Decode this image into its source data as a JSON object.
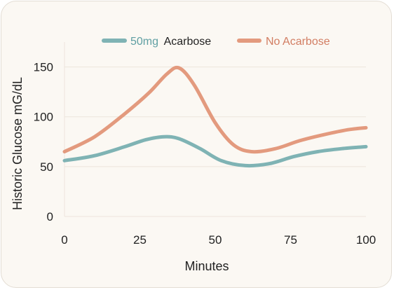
{
  "chart_data": {
    "type": "line",
    "title": "",
    "xlabel": "Minutes",
    "ylabel": "Historic Glucose mG/dL",
    "xlim": [
      0,
      100
    ],
    "ylim": [
      0,
      175
    ],
    "x_ticks": [
      0,
      25,
      50,
      75,
      100
    ],
    "y_ticks": [
      0,
      50,
      100,
      150
    ],
    "grid": true,
    "legend_position": "top-center",
    "series": [
      {
        "name_prefix": "50mg",
        "name_suffix": "Acarbose",
        "color": "#7fb3b4",
        "prefix_color": "#5f9fa3",
        "suffix_color": "#222222",
        "x": [
          0,
          10,
          20,
          27,
          33,
          38,
          45,
          52,
          60,
          68,
          76,
          84,
          92,
          100
        ],
        "y": [
          56,
          61,
          70,
          77,
          80,
          78,
          68,
          56,
          51,
          53,
          60,
          65,
          68,
          70
        ]
      },
      {
        "name": "No Acarbose",
        "color": "#e39a7e",
        "text_color": "#d27d62",
        "x": [
          0,
          10,
          20,
          28,
          34,
          38,
          43,
          50,
          56,
          62,
          70,
          78,
          86,
          94,
          100
        ],
        "y": [
          65,
          80,
          103,
          124,
          143,
          149,
          132,
          94,
          72,
          65,
          68,
          76,
          82,
          87,
          89
        ]
      }
    ]
  }
}
